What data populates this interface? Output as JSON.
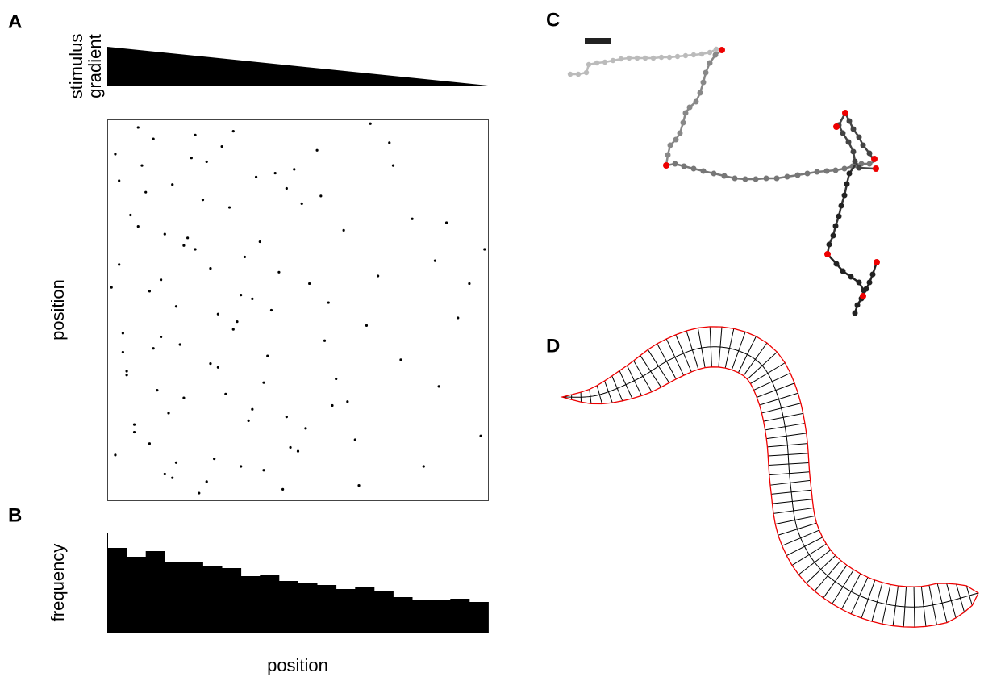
{
  "panel_labels": [
    "A",
    "B",
    "C",
    "D"
  ],
  "gradient_label": [
    "stimulus",
    "gradient"
  ],
  "chart_data": [
    {
      "type": "scatter",
      "y_label": "position",
      "color": "#000000",
      "xlim": [
        0,
        1
      ],
      "ylim": [
        0,
        1
      ],
      "x": [
        0.02,
        0.05,
        0.08,
        0.11,
        0.14,
        0.17,
        0.2,
        0.23,
        0.26,
        0.29,
        0.03,
        0.07,
        0.12,
        0.19,
        0.32,
        0.35,
        0.38,
        0.41,
        0.44,
        0.47,
        0.04,
        0.09,
        0.15,
        0.21,
        0.27,
        0.33,
        0.5,
        0.53,
        0.56,
        0.59,
        0.06,
        0.13,
        0.18,
        0.24,
        0.3,
        0.36,
        0.42,
        0.62,
        0.65,
        0.68,
        0.01,
        0.1,
        0.16,
        0.22,
        0.28,
        0.34,
        0.4,
        0.46,
        0.71,
        0.74,
        0.02,
        0.08,
        0.14,
        0.25,
        0.31,
        0.39,
        0.45,
        0.52,
        0.77,
        0.8,
        0.05,
        0.11,
        0.17,
        0.23,
        0.37,
        0.43,
        0.49,
        0.57,
        0.83,
        0.86,
        0.03,
        0.12,
        0.2,
        0.29,
        0.35,
        0.48,
        0.55,
        0.63,
        0.89,
        0.92,
        0.07,
        0.15,
        0.26,
        0.33,
        0.41,
        0.51,
        0.6,
        0.69,
        0.95,
        0.98,
        0.04,
        0.18,
        0.27,
        0.38,
        0.47,
        0.58,
        0.66,
        0.75,
        0.87,
        0.99
      ],
      "y": [
        0.91,
        0.34,
        0.72,
        0.15,
        0.58,
        0.83,
        0.27,
        0.66,
        0.05,
        0.49,
        0.62,
        0.18,
        0.95,
        0.41,
        0.77,
        0.09,
        0.53,
        0.31,
        0.86,
        0.22,
        0.44,
        0.88,
        0.07,
        0.69,
        0.36,
        0.97,
        0.13,
        0.57,
        0.8,
        0.25,
        0.75,
        0.29,
        0.51,
        0.02,
        0.93,
        0.64,
        0.38,
        0.71,
        0.16,
        0.46,
        0.56,
        0.81,
        0.23,
        0.9,
        0.11,
        0.47,
        0.68,
        0.03,
        0.59,
        0.94,
        0.12,
        0.98,
        0.43,
        0.79,
        0.28,
        0.85,
        0.6,
        0.19,
        0.37,
        0.74,
        0.33,
        0.55,
        0.06,
        0.96,
        0.21,
        0.5,
        0.87,
        0.42,
        0.09,
        0.63,
        0.84,
        0.4,
        0.67,
        0.35,
        0.54,
        0.14,
        0.92,
        0.26,
        0.73,
        0.48,
        0.2,
        0.7,
        0.89,
        0.45,
        0.08,
        0.78,
        0.32,
        0.99,
        0.57,
        0.17,
        0.39,
        0.1,
        0.61,
        0.24,
        0.82,
        0.52,
        0.04,
        0.88,
        0.3,
        0.66
      ]
    },
    {
      "type": "histogram",
      "y_label": "frequency",
      "x_label": "position",
      "color": "#000000",
      "bins": [
        0,
        1,
        2,
        3,
        4,
        5,
        6,
        7,
        8,
        9,
        10,
        11,
        12,
        13,
        14,
        15,
        16,
        17,
        18,
        19,
        20
      ],
      "values": [
        106,
        95,
        102,
        88,
        88,
        84,
        81,
        71,
        73,
        65,
        63,
        60,
        55,
        57,
        53,
        45,
        41,
        42,
        43,
        39
      ],
      "xlim": [
        0,
        20
      ],
      "ylim": [
        0,
        125
      ]
    }
  ]
}
